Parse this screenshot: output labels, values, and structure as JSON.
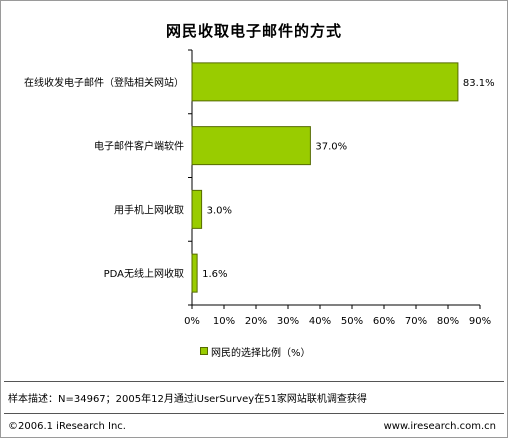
{
  "chart_data": {
    "type": "bar",
    "orientation": "horizontal",
    "title": "网民收取电子邮件的方式",
    "categories": [
      "在线收发电子邮件（登陆相关网站）",
      "电子邮件客户端软件",
      "用手机上网收取",
      "PDA无线上网收取"
    ],
    "values": [
      83.1,
      37.0,
      3.0,
      1.6
    ],
    "value_labels": [
      "83.1%",
      "37.0%",
      "3.0%",
      "1.6%"
    ],
    "xlim": [
      0,
      90
    ],
    "xticks": [
      "0%",
      "10%",
      "20%",
      "30%",
      "40%",
      "50%",
      "60%",
      "70%",
      "80%",
      "90%"
    ],
    "legend": "网民的选择比例（%）",
    "legend_position": "bottom",
    "grid": false,
    "bar_color": "#99cc00",
    "bar_border_color": "#556b00"
  },
  "note": "样本描述：N=34967；2005年12月通过iUserSurvey在51家网站联机调查获得",
  "copyright": "©2006.1  iResearch Inc.",
  "website": "www.iresearch.com.cn"
}
